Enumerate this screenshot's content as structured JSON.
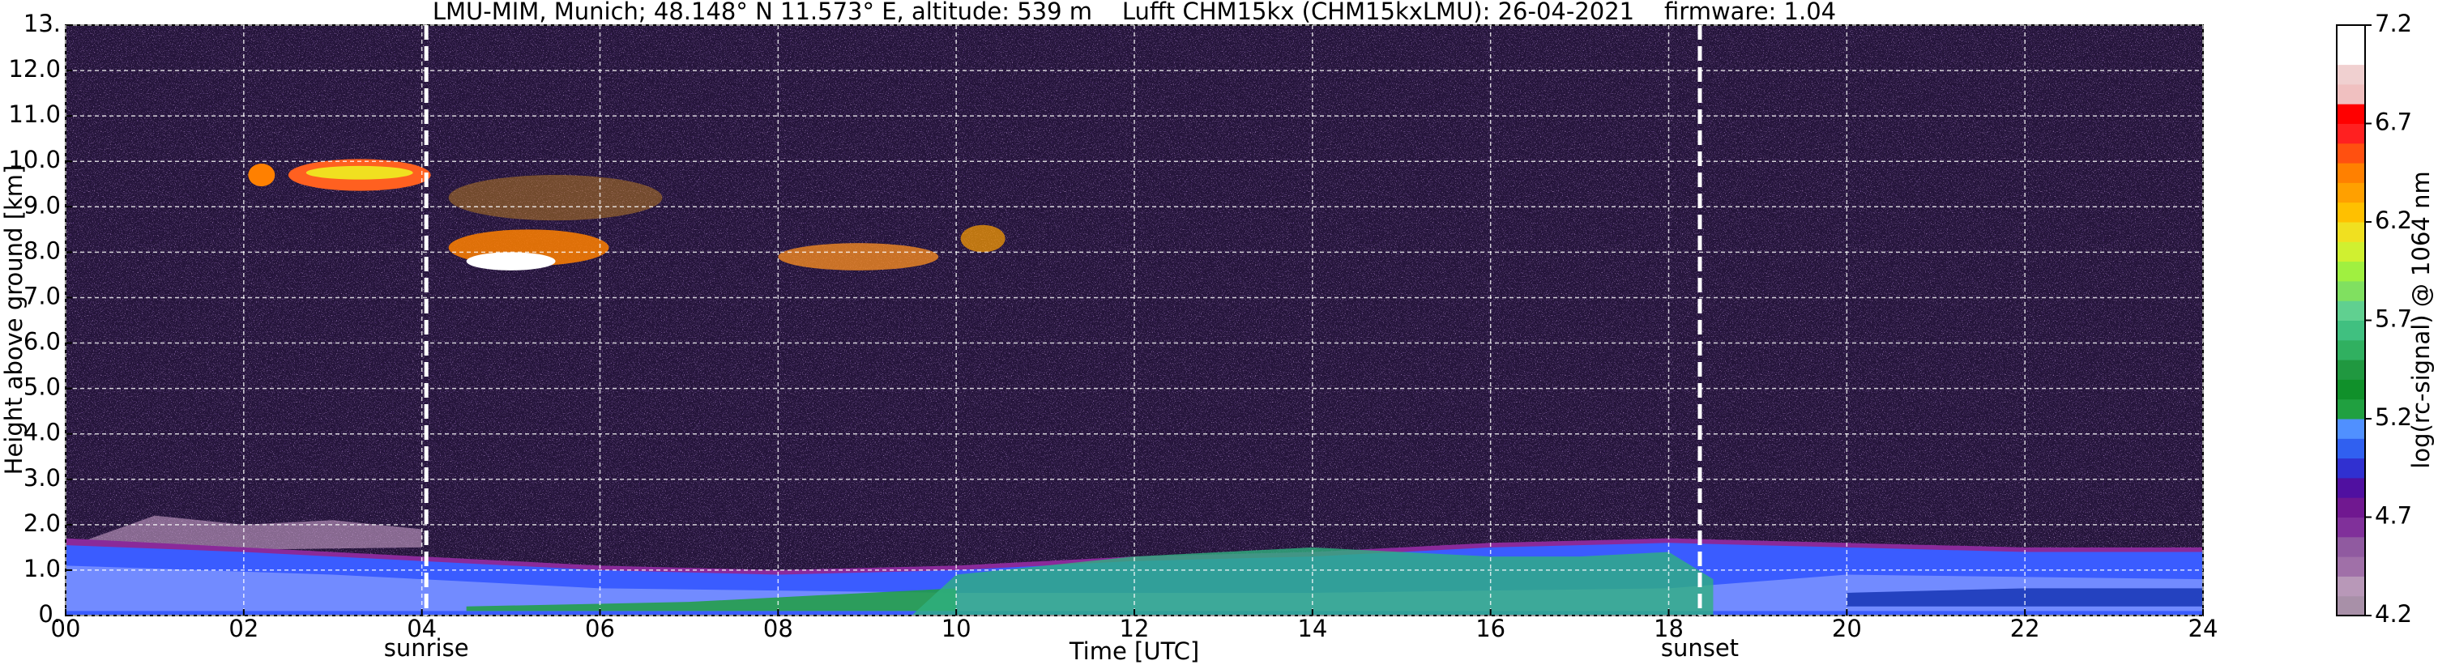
{
  "chart_data": {
    "type": "heatmap",
    "title": "LMU-MIM, Munich; 48.148° N 11.573° E, altitude: 539 m    Lufft CHM15kx (CHM15kxLMU): 26-04-2021    firmware: 1.04",
    "xlabel": "Time [UTC]",
    "ylabel": "Height above ground [km]",
    "xlim": [
      0,
      24
    ],
    "xticks": [
      {
        "value": 0,
        "label": "00"
      },
      {
        "value": 2,
        "label": "02"
      },
      {
        "value": 4,
        "label": "04"
      },
      {
        "value": 6,
        "label": "06"
      },
      {
        "value": 8,
        "label": "08"
      },
      10,
      12,
      14,
      16,
      18,
      20,
      22,
      24
    ],
    "ylim": [
      0,
      13
    ],
    "yticks": [
      {
        "value": 0,
        "label": "0."
      },
      {
        "value": 1,
        "label": "1.0"
      },
      {
        "value": 2,
        "label": "2.0"
      },
      {
        "value": 3,
        "label": "3.0"
      },
      {
        "value": 4,
        "label": "4.0"
      },
      {
        "value": 5,
        "label": "5.0"
      },
      {
        "value": 6,
        "label": "6.0"
      },
      {
        "value": 7,
        "label": "7.0"
      },
      {
        "value": 8,
        "label": "8.0"
      },
      {
        "value": 9,
        "label": "9.0"
      },
      {
        "value": 10,
        "label": "10.0"
      },
      {
        "value": 11,
        "label": "11.0"
      },
      {
        "value": 12,
        "label": "12.0"
      },
      {
        "value": 13,
        "label": "13."
      }
    ],
    "grid": true,
    "annotations": [
      {
        "x": 4.05,
        "label": "sunrise"
      },
      {
        "x": 18.35,
        "label": "sunset"
      }
    ],
    "colorbar": {
      "label": "log(rc-signal) @ 1064 nm",
      "lim": [
        4.2,
        7.2
      ],
      "ticks": [
        4.2,
        4.7,
        5.2,
        5.7,
        6.2,
        6.7,
        7.2
      ],
      "colors": [
        "#a890a8",
        "#b898b8",
        "#a070a8",
        "#905aa0",
        "#80309a",
        "#701890",
        "#5010a0",
        "#3030d0",
        "#3060f0",
        "#5090ff",
        "#20a040",
        "#10902a",
        "#209840",
        "#30b060",
        "#40c080",
        "#60d090",
        "#80e060",
        "#a0f040",
        "#d0f030",
        "#f0e020",
        "#ffc000",
        "#ffa000",
        "#ff8000",
        "#ff5010",
        "#ff2020",
        "#ff0000",
        "#f0c0c0",
        "#f0d0d0",
        "#ffffff",
        "#ffffff"
      ]
    }
  }
}
